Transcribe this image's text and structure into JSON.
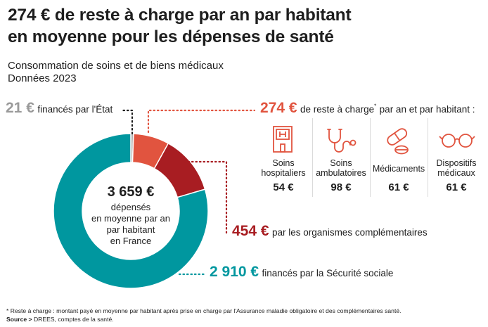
{
  "header": {
    "title_line1": "274 € de reste à charge par an par habitant",
    "title_line2": "en moyenne pour les dépenses de santé",
    "subtitle_line1": "Consommation de soins et de biens médicaux",
    "subtitle_line2": "Données 2023"
  },
  "center": {
    "total": "3 659 €",
    "line1": "dépensés",
    "line2": "en moyenne par an",
    "line3": "par habitant",
    "line4": "en France"
  },
  "annotations": {
    "etat_value": "21 €",
    "etat_text": "financés par l'État",
    "reste_value": "274 €",
    "reste_text": "de reste à charge",
    "reste_star": "*",
    "reste_text2": "par an et par habitant :",
    "oc_value": "454 €",
    "oc_text": "par les organismes complémentaires",
    "secu_value": "2 910 €",
    "secu_text": "financés par la Sécurité sociale"
  },
  "categories": [
    {
      "icon": "hospital-icon",
      "label_line1": "Soins",
      "label_line2": "hospitaliers",
      "value": "54 €"
    },
    {
      "icon": "stethoscope-icon",
      "label_line1": "Soins",
      "label_line2": "ambulatoires",
      "value": "98 €"
    },
    {
      "icon": "pills-icon",
      "label_line1": "Médicaments",
      "label_line2": "",
      "value": "61 €"
    },
    {
      "icon": "glasses-icon",
      "label_line1": "Dispositifs",
      "label_line2": "médicaux",
      "value": "61 €"
    }
  ],
  "footer": {
    "note": "* Reste à charge : montant payé en moyenne par habitant après prise en charge par l'Assurance maladie obligatoire et des complémentaires santé.",
    "source_label": "Source >",
    "source_text": "DREES, comptes de la santé."
  },
  "colors": {
    "etat": "#b3b3b3",
    "reste": "#e1543f",
    "oc": "#a81d22",
    "secu": "#00979f"
  },
  "chart_data": {
    "type": "pie",
    "donut": true,
    "total": 3659,
    "slices": [
      {
        "label": "financés par l'État",
        "value": 21
      },
      {
        "label": "de reste à charge",
        "value": 274
      },
      {
        "label": "par les organismes complémentaires",
        "value": 454
      },
      {
        "label": "financés par la Sécurité sociale",
        "value": 2910
      }
    ]
  }
}
